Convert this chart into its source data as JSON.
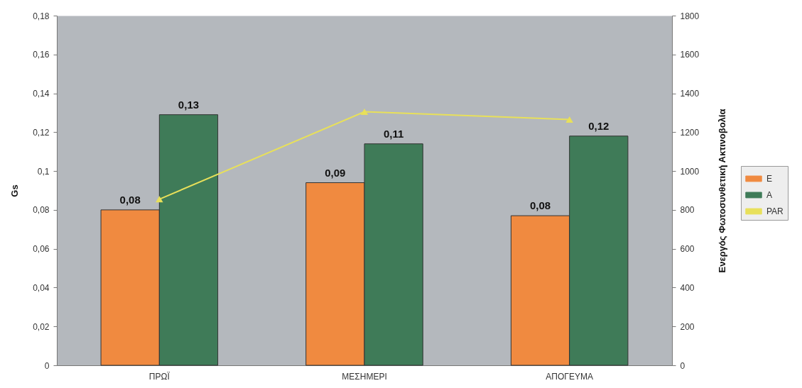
{
  "chart_data": {
    "type": "bar",
    "ylabel": "Gs",
    "y2label": "Ενεργός Φωτοσυνθετική Ακτινοβολία",
    "categories": [
      "ΠΡΩΪ",
      "ΜΕΣΗΜΕΡΙ",
      "ΑΠΟΓΕΥΜΑ"
    ],
    "series": [
      {
        "name": "E",
        "color": "#f08a40",
        "values": [
          0.08,
          0.094,
          0.077
        ],
        "value_labels": [
          "0,08",
          "0,09",
          "0,08"
        ]
      },
      {
        "name": "A",
        "color": "#3f7b58",
        "values": [
          0.129,
          0.114,
          0.118
        ],
        "value_labels": [
          "0,13",
          "0,11",
          "0,12"
        ]
      },
      {
        "name": "PAR",
        "type": "line",
        "axis": "y2",
        "marker": "triangle",
        "color": "#e8e05a",
        "values": [
          855,
          1305,
          1265
        ]
      }
    ],
    "ylim": [
      0,
      0.18
    ],
    "yticks": [
      0,
      {
        "value": 0.02,
        "label": "0,02"
      },
      {
        "value": 0.04,
        "label": "0,04"
      },
      {
        "value": 0.06,
        "label": "0,06"
      },
      {
        "value": 0.08,
        "label": "0,08"
      },
      {
        "value": 0.1,
        "label": "0,1"
      },
      {
        "value": 0.12,
        "label": "0,12"
      },
      {
        "value": 0.14,
        "label": "0,14"
      },
      {
        "value": 0.16,
        "label": "0,16"
      },
      {
        "value": 0.18,
        "label": "0,18"
      }
    ],
    "y2lim": [
      0,
      1800
    ],
    "y2ticks": [
      0,
      200,
      400,
      600,
      800,
      1000,
      1200,
      1400,
      1600,
      1800
    ],
    "legend": "right",
    "grid": false
  }
}
